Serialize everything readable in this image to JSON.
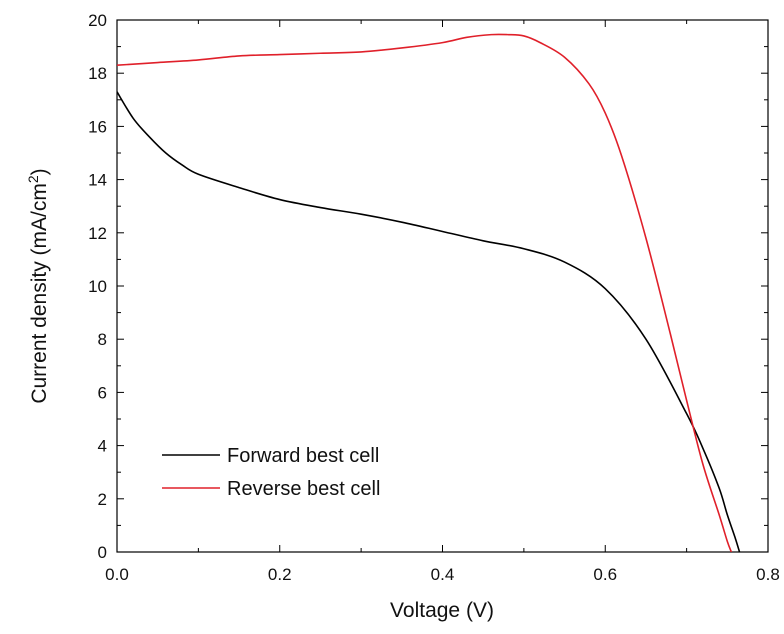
{
  "chart_data": {
    "type": "line",
    "title": "",
    "xlabel": "Voltage (V)",
    "ylabel_main": "Current density (mA/cm",
    "ylabel_sup": "2",
    "ylabel_tail": ")",
    "xlim": [
      0.0,
      0.8
    ],
    "ylim": [
      0,
      20
    ],
    "xticks": [
      0.0,
      0.2,
      0.4,
      0.6,
      0.8
    ],
    "xtick_labels": [
      "0.0",
      "0.2",
      "0.4",
      "0.6",
      "0.8"
    ],
    "yticks": [
      0,
      2,
      4,
      6,
      8,
      10,
      12,
      14,
      16,
      18,
      20
    ],
    "ytick_labels": [
      "0",
      "2",
      "4",
      "6",
      "8",
      "10",
      "12",
      "14",
      "16",
      "18",
      "20"
    ],
    "grid": false,
    "legend_position": "bottom-left",
    "series": [
      {
        "name": "Forward best cell",
        "color": "#000000",
        "x": [
          0.0,
          0.02,
          0.04,
          0.06,
          0.08,
          0.1,
          0.15,
          0.2,
          0.25,
          0.3,
          0.35,
          0.4,
          0.45,
          0.5,
          0.55,
          0.6,
          0.65,
          0.7,
          0.72,
          0.74,
          0.75,
          0.76,
          0.765
        ],
        "y": [
          17.3,
          16.3,
          15.6,
          15.0,
          14.55,
          14.2,
          13.7,
          13.25,
          12.95,
          12.7,
          12.4,
          12.05,
          11.7,
          11.4,
          10.9,
          9.9,
          8.0,
          5.2,
          3.9,
          2.4,
          1.4,
          0.5,
          0.0
        ]
      },
      {
        "name": "Reverse best cell",
        "color": "#e0202a",
        "x": [
          0.0,
          0.05,
          0.1,
          0.15,
          0.2,
          0.25,
          0.3,
          0.35,
          0.4,
          0.43,
          0.46,
          0.48,
          0.5,
          0.52,
          0.55,
          0.58,
          0.6,
          0.62,
          0.65,
          0.68,
          0.7,
          0.72,
          0.74,
          0.75,
          0.755
        ],
        "y": [
          18.3,
          18.4,
          18.5,
          18.65,
          18.7,
          18.75,
          18.8,
          18.95,
          19.15,
          19.35,
          19.45,
          19.45,
          19.4,
          19.15,
          18.6,
          17.6,
          16.5,
          14.9,
          11.8,
          8.2,
          5.7,
          3.3,
          1.4,
          0.4,
          0.0
        ]
      }
    ]
  }
}
